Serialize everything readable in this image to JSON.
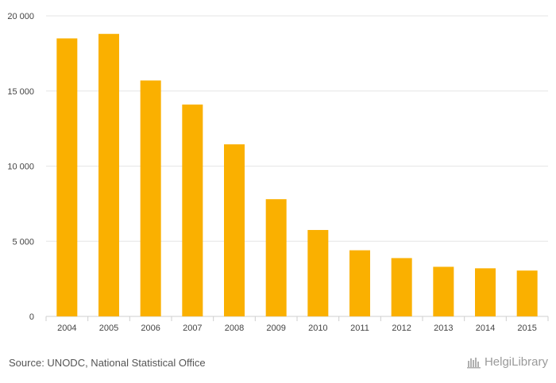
{
  "chart_data": {
    "type": "bar",
    "categories": [
      "2004",
      "2005",
      "2006",
      "2007",
      "2008",
      "2009",
      "2010",
      "2011",
      "2012",
      "2013",
      "2014",
      "2015"
    ],
    "values": [
      18500,
      18800,
      15700,
      14100,
      11450,
      7800,
      5750,
      4400,
      3880,
      3300,
      3200,
      3050
    ],
    "ylim": [
      0,
      20000
    ],
    "yticks": [
      0,
      5000,
      10000,
      15000,
      20000
    ],
    "ytick_labels": [
      "0",
      "5 000",
      "10 000",
      "15 000",
      "20 000"
    ],
    "grid": true,
    "bar_color": "#FAB000",
    "grid_color": "#E6E6E6"
  },
  "footer": {
    "source": "Source: UNODC, National Statistical Office",
    "logo_text": "HelgiLibrary"
  }
}
